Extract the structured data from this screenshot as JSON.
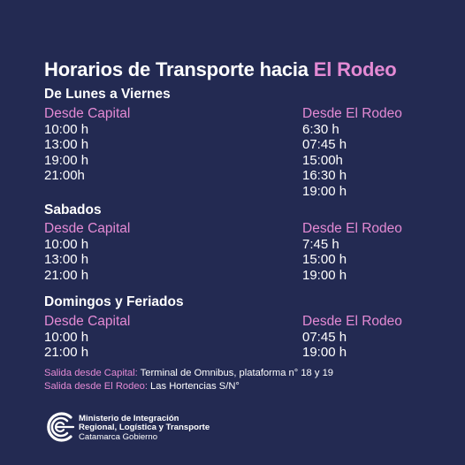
{
  "title": {
    "main": "Horarios de Transporte hacia",
    "highlight": "El Rodeo"
  },
  "sections": [
    {
      "heading": "De Lunes a Viernes",
      "left": {
        "head": "Desde Capital",
        "times": [
          "10:00 h",
          "13:00 h",
          "19:00 h",
          "21:00h"
        ]
      },
      "right": {
        "head": "Desde El Rodeo",
        "times": [
          "6:30 h",
          "07:45 h",
          "15:00h",
          "16:30 h",
          "19:00 h"
        ]
      }
    },
    {
      "heading": "Sabados",
      "left": {
        "head": "Desde Capital",
        "times": [
          "10:00 h",
          "13:00 h",
          "21:00 h"
        ]
      },
      "right": {
        "head": "Desde El Rodeo",
        "times": [
          "7:45 h",
          "15:00 h",
          "19:00 h"
        ]
      }
    },
    {
      "heading": "Domingos y Feriados",
      "left": {
        "head": "Desde Capital",
        "times": [
          "10:00 h",
          "21:00 h"
        ]
      },
      "right": {
        "head": "Desde El Rodeo",
        "times": [
          "07:45 h",
          "19:00 h"
        ]
      }
    }
  ],
  "notes": [
    {
      "key": "Salida desde Capital:",
      "value": "Terminal de Omnibus, plataforma n° 18 y 19"
    },
    {
      "key": "Salida desde El Rodeo:",
      "value": "Las Hortencias S/N°"
    }
  ],
  "footer": {
    "line1": "Ministerio de Integración",
    "line2": "Regional, Logística y Transporte",
    "line3": "Catamarca Gobierno",
    "logo_icon": "ministry-c-logo-icon"
  },
  "colors": {
    "background": "#232a52",
    "accent": "#e48ad4",
    "text": "#ffffff"
  }
}
